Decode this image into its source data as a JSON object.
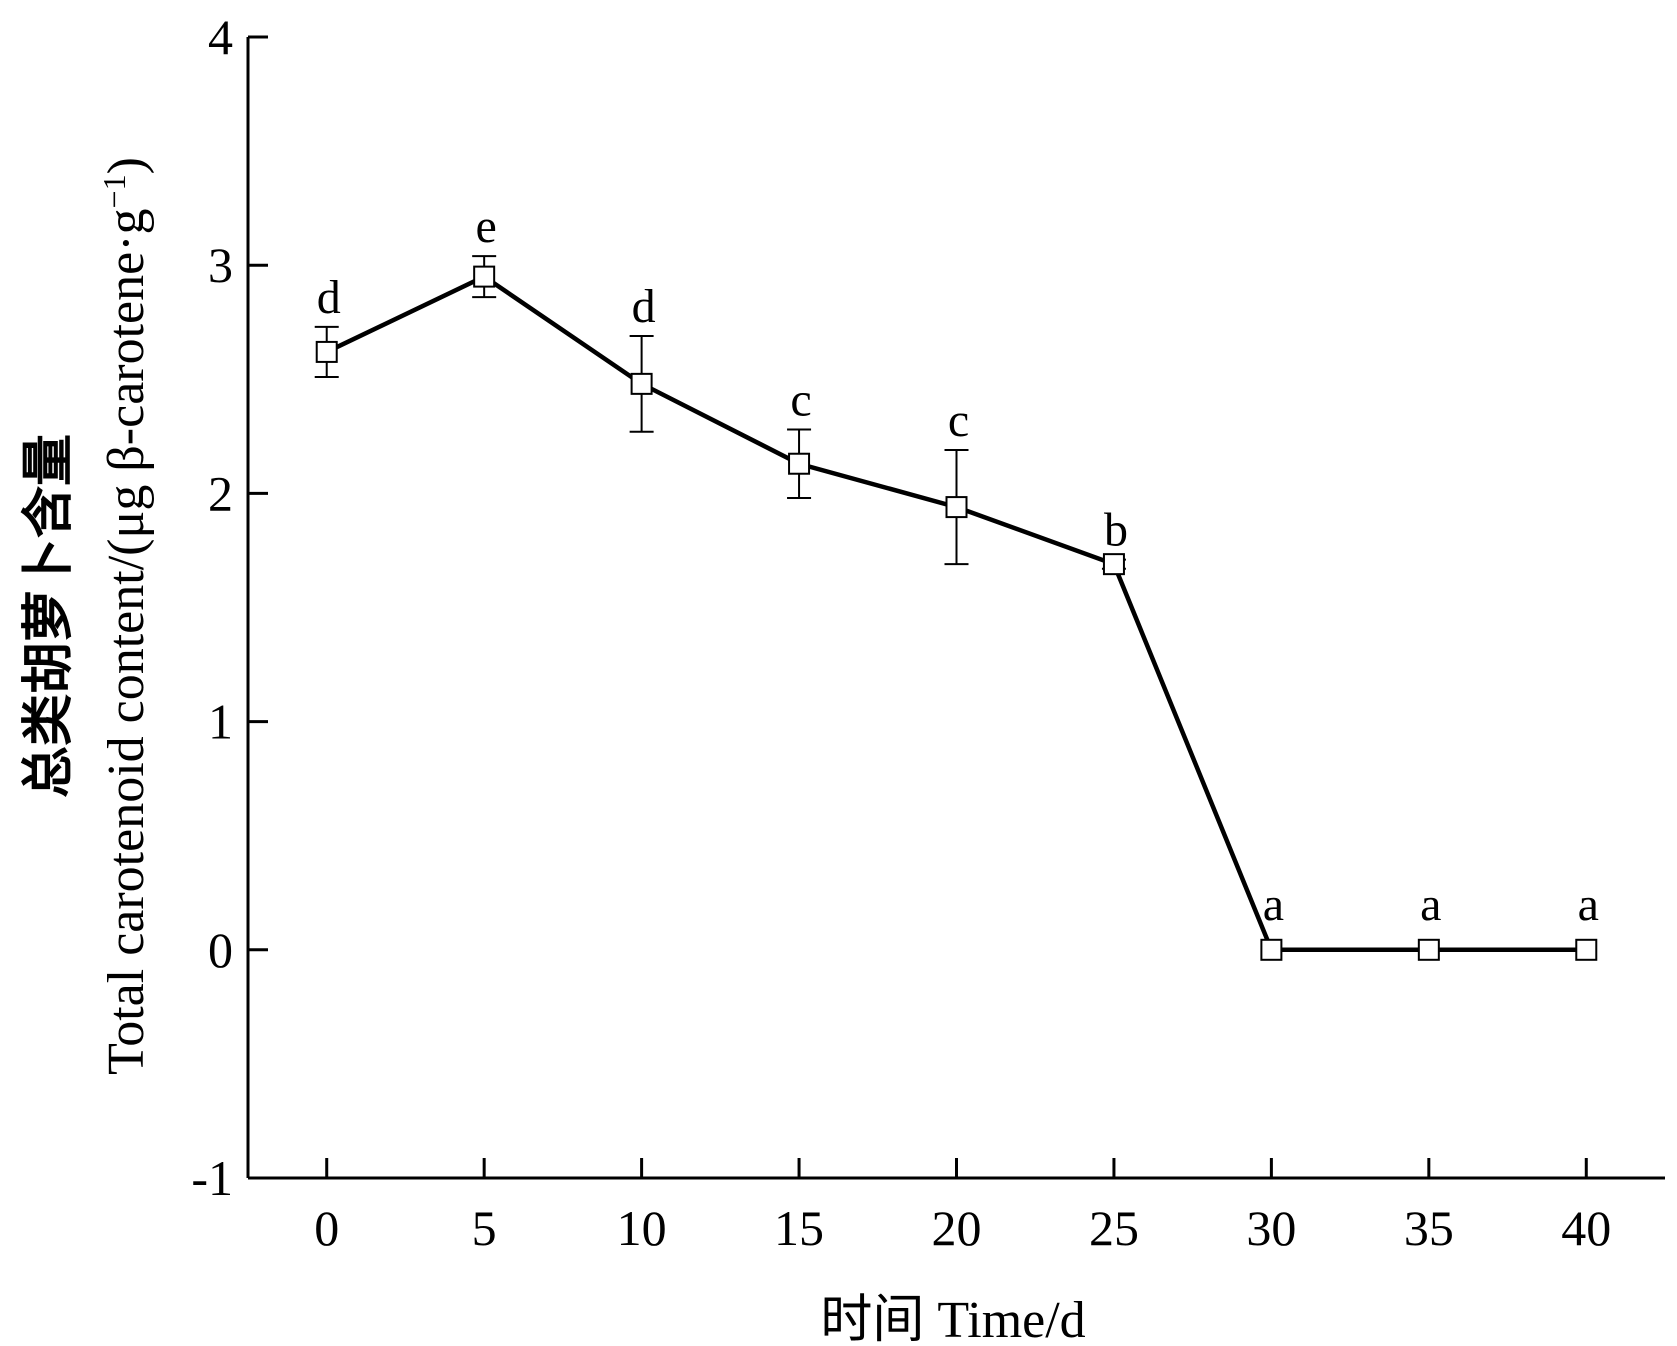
{
  "chart_data": {
    "type": "line",
    "title": "",
    "xlabel": "时间  Time/d",
    "ylabel_cn": "总类胡萝卜含量",
    "ylabel_en": "Total carotenoid content/(μg β-carotene·g",
    "ylabel_sup": "−1",
    "ylabel_close": ")",
    "xlim": [
      -2.5,
      42.5
    ],
    "ylim": [
      -1,
      4
    ],
    "x_ticks": [
      "0",
      "5",
      "10",
      "15",
      "20",
      "25",
      "30",
      "35",
      "40"
    ],
    "y_ticks": [
      "-1",
      "0",
      "1",
      "2",
      "3",
      "4"
    ],
    "grid": false,
    "legend": "none",
    "marker": "open-square",
    "series": [
      {
        "x": [
          0,
          5,
          10,
          15,
          20,
          25,
          30,
          35,
          40
        ],
        "values": [
          2.62,
          2.95,
          2.48,
          2.13,
          1.94,
          1.69,
          0,
          0,
          0
        ],
        "error": [
          0.11,
          0.09,
          0.21,
          0.15,
          0.25,
          0.02,
          0,
          0,
          0
        ],
        "labels": [
          "d",
          "e",
          "d",
          "c",
          "c",
          "b",
          "a",
          "a",
          "a"
        ]
      }
    ],
    "colors": {
      "line": "#000000",
      "marker_fill": "#ffffff"
    }
  }
}
